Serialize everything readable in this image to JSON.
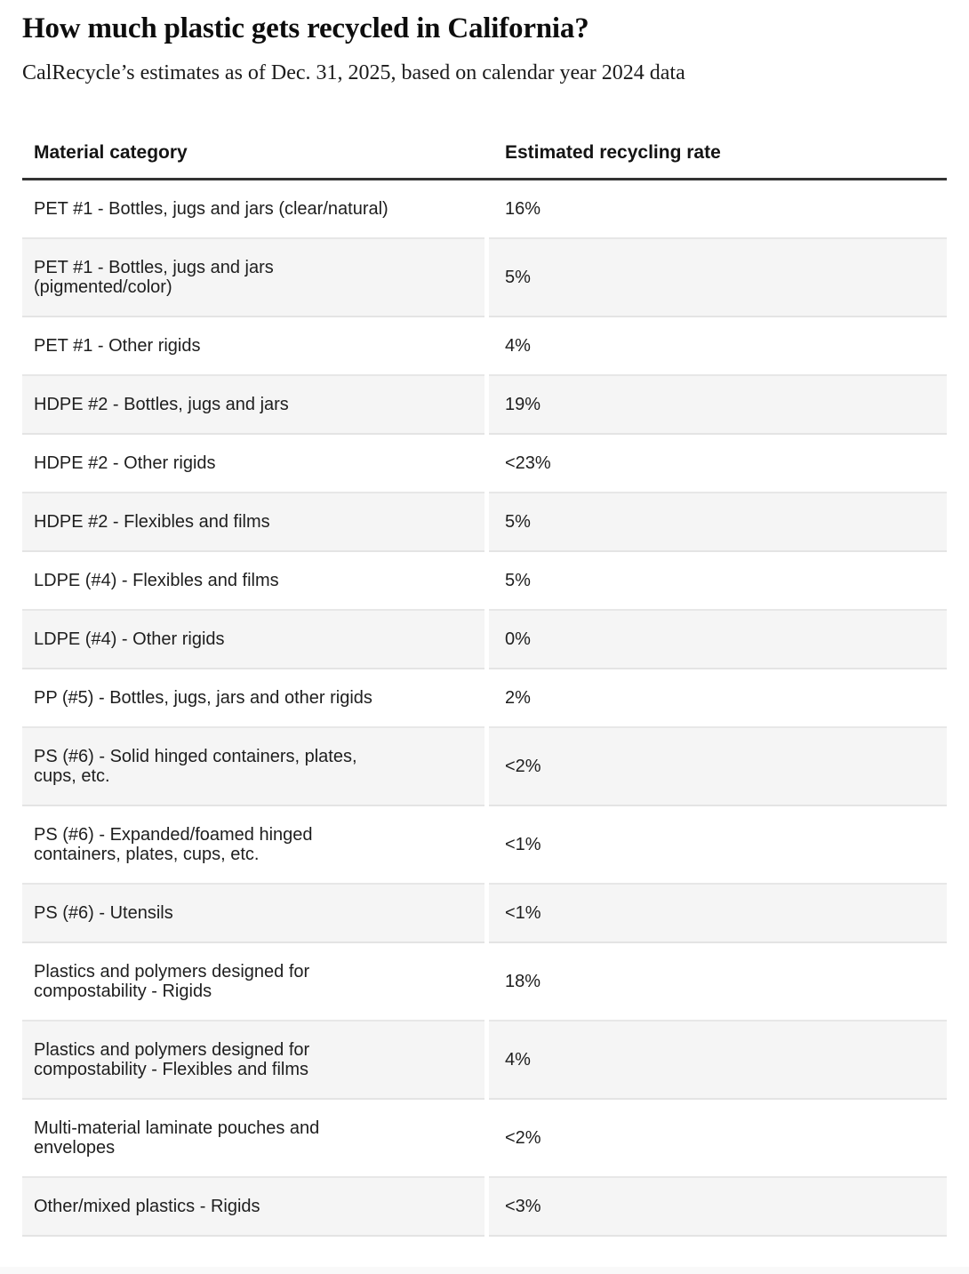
{
  "page": {
    "title": "How much plastic gets recycled in California?",
    "subtitle": "CalRecycle’s estimates as of Dec. 31, 2025, based on calendar year 2024 data"
  },
  "table": {
    "columns": [
      "Material category",
      "Estimated recycling rate"
    ],
    "rows": [
      {
        "category": "PET #1 - Bottles, jugs and jars (clear/natural)",
        "rate": "16%"
      },
      {
        "category": "PET #1 - Bottles, jugs and jars\n(pigmented/color)",
        "rate": "5%"
      },
      {
        "category": "PET #1 - Other rigids",
        "rate": "4%"
      },
      {
        "category": "HDPE #2 - Bottles, jugs and jars",
        "rate": "19%"
      },
      {
        "category": "HDPE #2 - Other rigids",
        "rate": "<23%"
      },
      {
        "category": "HDPE #2 - Flexibles and films",
        "rate": "5%"
      },
      {
        "category": "LDPE (#4) - Flexibles and films",
        "rate": "5%"
      },
      {
        "category": "LDPE (#4) - Other rigids",
        "rate": "0%"
      },
      {
        "category": "PP (#5) - Bottles, jugs, jars and other rigids",
        "rate": "2%"
      },
      {
        "category": "PS (#6) - Solid hinged containers, plates,\ncups, etc.",
        "rate": "<2%"
      },
      {
        "category": "PS (#6) - Expanded/foamed hinged\ncontainers, plates, cups, etc.",
        "rate": "<1%"
      },
      {
        "category": "PS (#6) - Utensils",
        "rate": "<1%"
      },
      {
        "category": "Plastics and polymers designed for\ncompostability - Rigids",
        "rate": "18%"
      },
      {
        "category": "Plastics and polymers designed for\ncompostability - Flexibles and films",
        "rate": "4%"
      },
      {
        "category": "Multi-material laminate pouches and\nenvelopes",
        "rate": "<2%"
      },
      {
        "category": "Other/mixed plastics - Rigids",
        "rate": "<3%"
      }
    ]
  },
  "chart_data": {
    "type": "table",
    "title": "How much plastic gets recycled in California?",
    "subtitle": "CalRecycle’s estimates as of Dec. 31, 2025, based on calendar year 2024 data",
    "columns": [
      "Material category",
      "Estimated recycling rate"
    ],
    "rows": [
      [
        "PET #1 - Bottles, jugs and jars (clear/natural)",
        "16%"
      ],
      [
        "PET #1 - Bottles, jugs and jars (pigmented/color)",
        "5%"
      ],
      [
        "PET #1 - Other rigids",
        "4%"
      ],
      [
        "HDPE #2 - Bottles, jugs and jars",
        "19%"
      ],
      [
        "HDPE #2 - Other rigids",
        "<23%"
      ],
      [
        "HDPE #2 - Flexibles and films",
        "5%"
      ],
      [
        "LDPE (#4) - Flexibles and films",
        "5%"
      ],
      [
        "LDPE (#4) - Other rigids",
        "0%"
      ],
      [
        "PP (#5) - Bottles, jugs, jars and other rigids",
        "2%"
      ],
      [
        "PS (#6) - Solid hinged containers, plates, cups, etc.",
        "<2%"
      ],
      [
        "PS (#6) - Expanded/foamed hinged containers, plates, cups, etc.",
        "<1%"
      ],
      [
        "PS (#6) - Utensils",
        "<1%"
      ],
      [
        "Plastics and polymers designed for compostability - Rigids",
        "18%"
      ],
      [
        "Plastics and polymers designed for compostability - Flexibles and films",
        "4%"
      ],
      [
        "Multi-material laminate pouches and envelopes",
        "<2%"
      ],
      [
        "Other/mixed plastics - Rigids",
        "<3%"
      ]
    ],
    "layout_hints": {
      "zebra_striping": true,
      "header_rule": true
    }
  },
  "colors": {
    "row_alternate_background": "#f5f5f5",
    "header_rule": "#333333",
    "row_separator": "#e7e7e7",
    "text": "#1e1e1e"
  }
}
